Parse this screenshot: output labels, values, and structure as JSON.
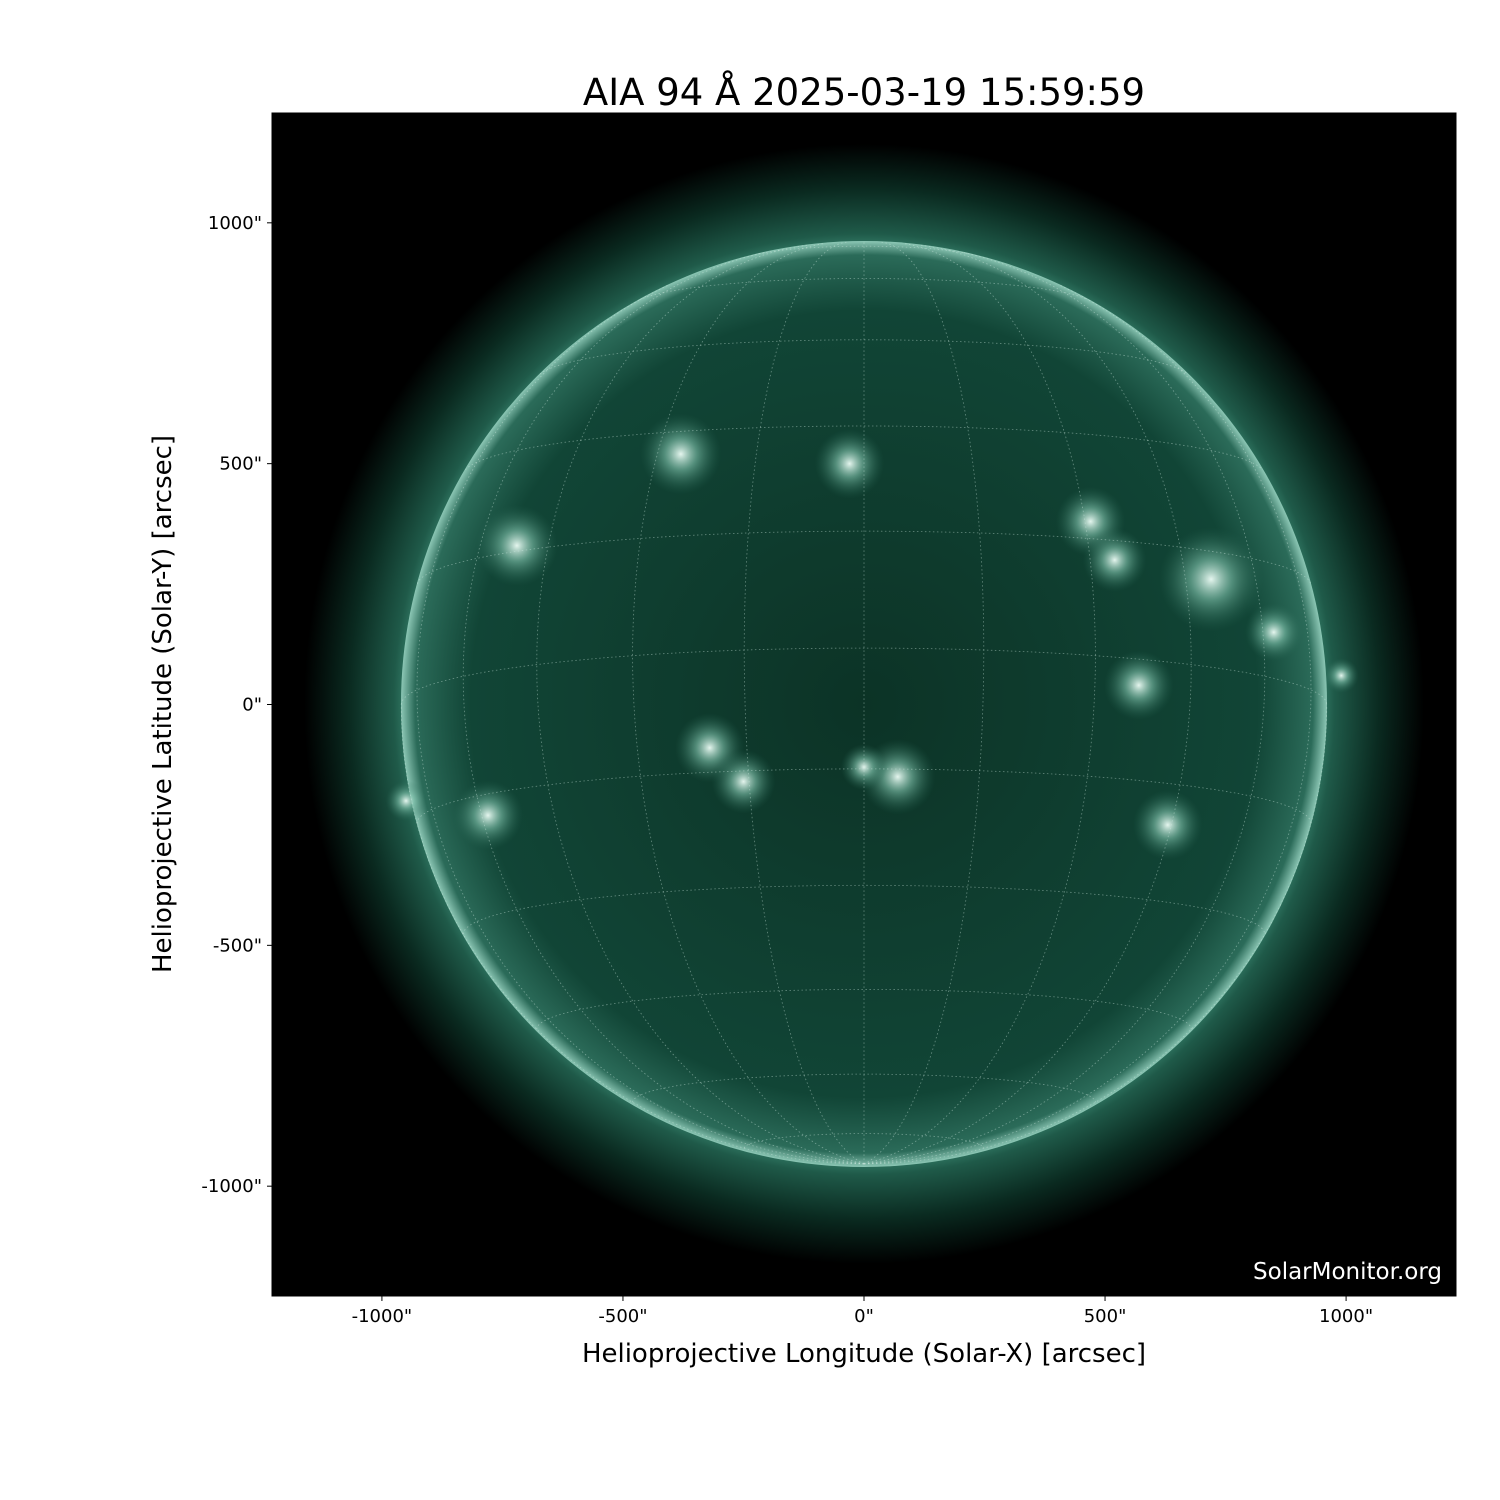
{
  "chart_data": {
    "type": "heatmap",
    "title": "AIA 94 Å 2025-03-19 15:59:59",
    "xlabel": "Helioprojective Longitude (Solar-X) [arcsec]",
    "ylabel": "Helioprojective Latitude (Solar-Y) [arcsec]",
    "xlim": [
      -1228,
      1228
    ],
    "ylim": [
      -1228,
      1228
    ],
    "x_ticks": [
      {
        "value": -1000,
        "label": "-1000\""
      },
      {
        "value": -500,
        "label": "-500\""
      },
      {
        "value": 0,
        "label": "0\""
      },
      {
        "value": 500,
        "label": "500\""
      },
      {
        "value": 1000,
        "label": "1000\""
      }
    ],
    "y_ticks": [
      {
        "value": 1000,
        "label": "1000\""
      },
      {
        "value": 500,
        "label": "500\""
      },
      {
        "value": 0,
        "label": "0\""
      },
      {
        "value": -500,
        "label": "-500\""
      },
      {
        "value": -1000,
        "label": "-1000\""
      }
    ],
    "solar_radius_arcsec": 960,
    "grid": "heliographic lat/lon overlay",
    "colormap": "sdoaia94",
    "colors": {
      "background": "#000000",
      "disk": "#0d3a2c",
      "bright": "#e8fff6"
    },
    "watermark": "SolarMonitor.org"
  }
}
